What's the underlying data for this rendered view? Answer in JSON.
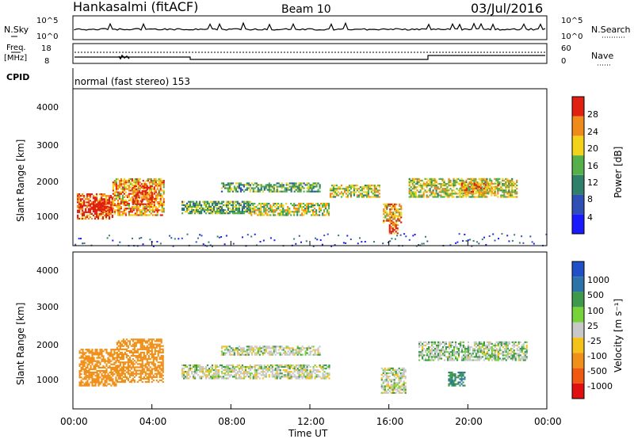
{
  "header": {
    "station": "Hankasalmi (fitACF)",
    "beam": "Beam 10",
    "date": "03/Jul/2016"
  },
  "noise_panel": {
    "left_label": "N.Sky",
    "right_label": "N.Search",
    "left_ticks": [
      "10^5",
      "10^0"
    ],
    "right_ticks": [
      "10^5",
      "10^0"
    ]
  },
  "freq_panel": {
    "left_label_1": "Freq.",
    "left_label_2": "[MHz]",
    "right_label": "Nave",
    "left_ticks": [
      "18",
      "8"
    ],
    "right_ticks": [
      "60",
      "0"
    ]
  },
  "cpid": {
    "label": "CPID",
    "text": "normal (fast stereo) 153"
  },
  "x_axis": {
    "title": "Time UT",
    "ticks": [
      "00:00",
      "04:00",
      "08:00",
      "12:00",
      "16:00",
      "20:00",
      "00:00"
    ]
  },
  "y_axis": {
    "title": "Slant Range [km]",
    "ticks": [
      "1000",
      "2000",
      "3000",
      "4000"
    ]
  },
  "power_bar": {
    "title": "Power [dB]",
    "labels": [
      "4",
      "8",
      "12",
      "16",
      "20",
      "24",
      "28"
    ],
    "colors": [
      "#1a1aff",
      "#2e4fb5",
      "#2f7f6a",
      "#56b04a",
      "#f2d21a",
      "#f08a1a",
      "#e02010"
    ]
  },
  "velocity_bar": {
    "title": "Velocity [m s⁻¹]",
    "labels": [
      "1000",
      "500",
      "100",
      "25",
      "-25",
      "-100",
      "-500",
      "-1000"
    ],
    "colors": [
      "#2050c8",
      "#2d73a8",
      "#3e9a4a",
      "#78d23a",
      "#c8c8c8",
      "#f5c21a",
      "#f09018",
      "#f05a10",
      "#e01010"
    ]
  },
  "chart_data": {
    "type": "heatmap",
    "x_range_hours": [
      0,
      24
    ],
    "y_range_km": [
      180,
      4500
    ],
    "power_regions": [
      {
        "t0": 0.2,
        "t1": 2.0,
        "r0": 900,
        "r1": 1600,
        "level": 6
      },
      {
        "t0": 1.0,
        "t1": 2.0,
        "r0": 1100,
        "r1": 1500,
        "level": 7
      },
      {
        "t0": 2.0,
        "t1": 4.6,
        "r0": 1000,
        "r1": 2000,
        "level": 5
      },
      {
        "t0": 3.0,
        "t1": 4.0,
        "r0": 1300,
        "r1": 1800,
        "level": 6
      },
      {
        "t0": 5.5,
        "t1": 9.0,
        "r0": 1050,
        "r1": 1400,
        "level": 3
      },
      {
        "t0": 7.5,
        "t1": 12.5,
        "r0": 1650,
        "r1": 1900,
        "level": 3
      },
      {
        "t0": 9.0,
        "t1": 13.0,
        "r0": 1000,
        "r1": 1350,
        "level": 4
      },
      {
        "t0": 13.0,
        "t1": 15.5,
        "r0": 1500,
        "r1": 1850,
        "level": 4
      },
      {
        "t0": 15.7,
        "t1": 16.6,
        "r0": 800,
        "r1": 1300,
        "level": 5
      },
      {
        "t0": 16.0,
        "t1": 16.4,
        "r0": 500,
        "r1": 800,
        "level": 6
      },
      {
        "t0": 17.0,
        "t1": 22.5,
        "r0": 1500,
        "r1": 2000,
        "level": 4
      },
      {
        "t0": 19.5,
        "t1": 21.5,
        "r0": 1600,
        "r1": 1900,
        "level": 5
      }
    ],
    "velocity_regions": [
      {
        "t0": 0.3,
        "t1": 2.2,
        "r0": 800,
        "r1": 1800,
        "vel": -400
      },
      {
        "t0": 2.2,
        "t1": 4.6,
        "r0": 900,
        "r1": 2100,
        "vel": -300
      },
      {
        "t0": 5.5,
        "t1": 13.0,
        "r0": 1000,
        "r1": 1400,
        "vel": 0
      },
      {
        "t0": 7.5,
        "t1": 12.5,
        "r0": 1650,
        "r1": 1900,
        "vel": 0
      },
      {
        "t0": 15.6,
        "t1": 16.8,
        "r0": 600,
        "r1": 1300,
        "vel": 0
      },
      {
        "t0": 17.5,
        "t1": 23.0,
        "r0": 1500,
        "r1": 2000,
        "vel": 10
      },
      {
        "t0": 19.0,
        "t1": 19.8,
        "r0": 800,
        "r1": 1200,
        "vel": 100
      }
    ]
  }
}
